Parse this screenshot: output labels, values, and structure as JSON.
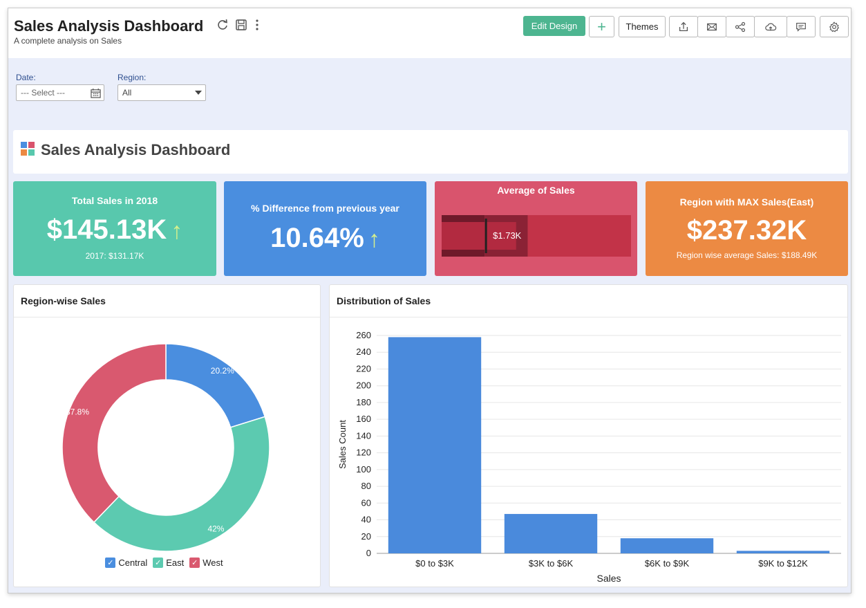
{
  "header": {
    "title": "Sales Analysis Dashboard",
    "subtitle": "A complete analysis on Sales",
    "edit_design_label": "Edit Design",
    "add_label": "+",
    "themes_label": "Themes",
    "icons": [
      "refresh-icon",
      "save-icon",
      "more-vertical-icon",
      "export-icon",
      "email-icon",
      "share-icon",
      "publish-cloud-icon",
      "comment-icon",
      "settings-icon"
    ]
  },
  "filters": {
    "date_label": "Date:",
    "date_placeholder": "--- Select ---",
    "region_label": "Region:",
    "region_value": "All"
  },
  "section": {
    "title": "Sales Analysis Dashboard"
  },
  "kpis": [
    {
      "title": "Total Sales in 2018",
      "value": "$145.13K",
      "sub": "2017: $131.17K",
      "color": "#58c8ad"
    },
    {
      "title": "% Difference from previous year",
      "value": "10.64%",
      "color": "#4a8edf"
    },
    {
      "title": "Average of Sales",
      "value": "$1.73K",
      "color": "#d9546d"
    },
    {
      "title": "Region with MAX Sales(East)",
      "value": "$237.32K",
      "sub": "Region wise average Sales: $188.49K",
      "color": "#ec8a43"
    }
  ],
  "bullet": {
    "value": 1.73,
    "target": 1.03,
    "ranges": [
      1.0,
      2.0,
      4.4
    ]
  },
  "panels": {
    "region": {
      "title": "Region-wise Sales"
    },
    "dist": {
      "title": "Distribution of Sales"
    }
  },
  "chart_data": [
    {
      "type": "pie",
      "title": "Region-wise Sales",
      "categories": [
        "Central",
        "East",
        "West"
      ],
      "values": [
        20.2,
        42,
        37.8
      ],
      "labels": [
        "20.2%",
        "42%",
        "37.8%"
      ],
      "colors": [
        "#4a8edf",
        "#5ccab0",
        "#d9596f"
      ],
      "legend": "bottom"
    },
    {
      "type": "bar",
      "title": "Distribution of Sales",
      "categories": [
        "$0 to $3K",
        "$3K to $6K",
        "$6K to $9K",
        "$9K to $12K"
      ],
      "values": [
        258,
        47,
        18,
        3
      ],
      "xlabel": "Sales",
      "ylabel": "Sales Count",
      "ylim": [
        0,
        260
      ],
      "yticks": [
        0,
        20,
        40,
        60,
        80,
        100,
        120,
        140,
        160,
        180,
        200,
        220,
        240,
        260
      ],
      "color": "#4a8adc",
      "grid": true
    }
  ]
}
